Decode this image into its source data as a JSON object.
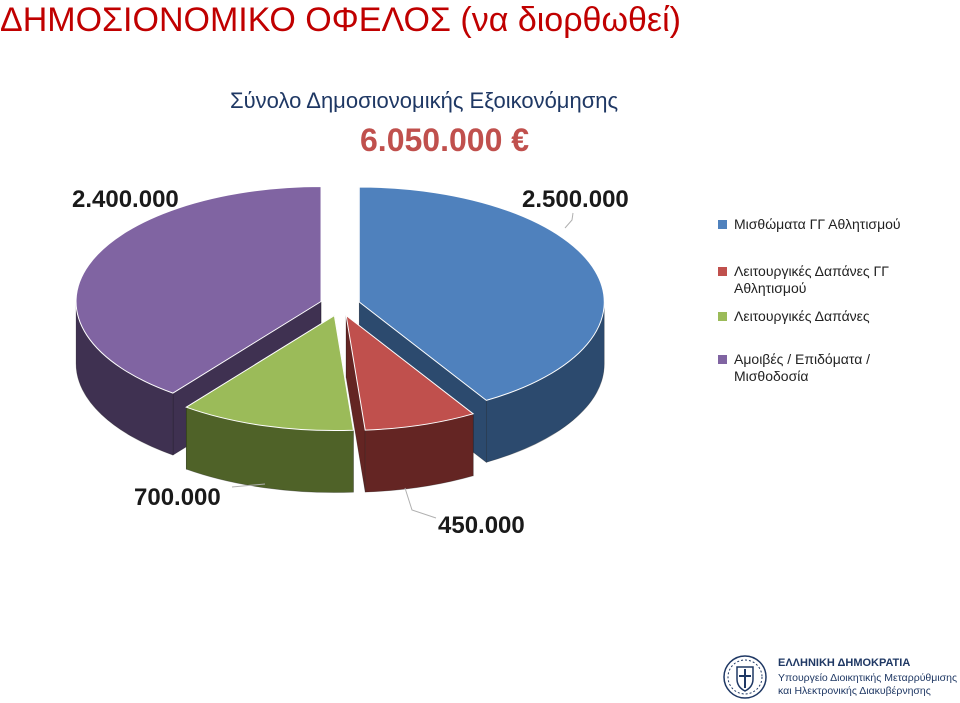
{
  "slide": {
    "title": "ΔΗΜΟΣΙΟΝΟΜΙΚΟ ΟΦΕΛΟΣ (να διορθωθεί)"
  },
  "chart_data": {
    "type": "pie",
    "title": "Σύνολο Δημοσιονομικής Εξοικονόμησης",
    "total_label": "6.050.000 €",
    "slices": [
      {
        "name": "Μισθώματα ΓΓ Αθλητισμού",
        "value": 2500000,
        "label": "2.500.000",
        "color": "#4f81bd",
        "side_color": "#2c4a6e"
      },
      {
        "name": "Λειτουργικές Δαπάνες  ΓΓ Αθλητισμού",
        "value": 450000,
        "label": "450.000",
        "color": "#c0504d",
        "side_color": "#642523"
      },
      {
        "name": "Λειτουργικές Δαπάνες",
        "value": 700000,
        "label": "700.000",
        "color": "#9bbb59",
        "side_color": "#4f6228"
      },
      {
        "name": "Αμοιβές / Επιδόματα / Μισθοδοσία",
        "value": 2400000,
        "label": "2.400.000",
        "color": "#8064a2",
        "side_color": "#3f3151"
      }
    ],
    "legend_position": "right"
  },
  "footer": {
    "line1": "ΕΛΛΗΝΙΚΗ ΔΗΜΟΚΡΑΤΙΑ",
    "line2": "Υπουργείο Διοικητικής Μεταρρύθμισης",
    "line3": "και Ηλεκτρονικής Διακυβέρνησης",
    "emblem_icon": "greek-coat-of-arms-icon"
  }
}
